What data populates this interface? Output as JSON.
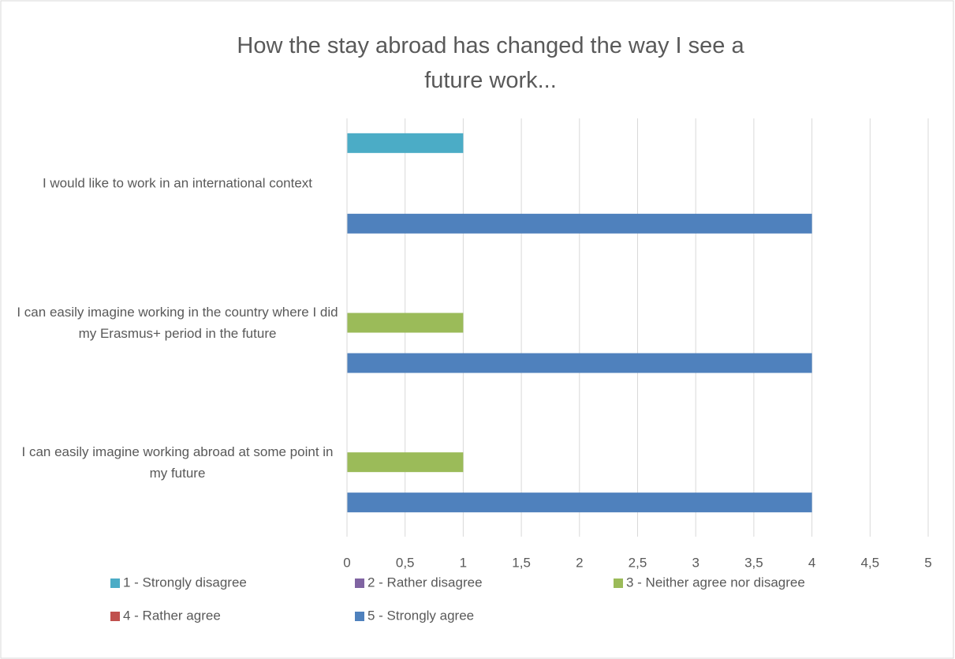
{
  "chart_data": {
    "type": "hbar",
    "title": "How the stay abroad has changed the way I see a future work...",
    "categories": [
      "I would like to work in an international context",
      "I can easily imagine working in the country where I did my Erasmus+ period in the future",
      "I can easily imagine working abroad at some point in my future"
    ],
    "series": [
      {
        "name": "1 - Strongly disagree",
        "color": "#4bacc6",
        "values": [
          1,
          0,
          0
        ]
      },
      {
        "name": "2 - Rather disagree",
        "color": "#8064a2",
        "values": [
          0,
          0,
          0
        ]
      },
      {
        "name": "3 - Neither agree nor disagree",
        "color": "#9bbb59",
        "values": [
          0,
          1,
          1
        ]
      },
      {
        "name": "4 - Rather agree",
        "color": "#c0504d",
        "values": [
          0,
          0,
          0
        ]
      },
      {
        "name": "5 - Strongly agree",
        "color": "#4f81bd",
        "values": [
          4,
          4,
          4
        ]
      }
    ],
    "xlim": [
      0,
      5
    ],
    "xticks": [
      0,
      {
        "value": 0.5,
        "label": "0,5"
      },
      1,
      {
        "value": 1.5,
        "label": "1,5"
      },
      2,
      {
        "value": 2.5,
        "label": "2,5"
      },
      3,
      {
        "value": 3.5,
        "label": "3,5"
      },
      4,
      {
        "value": 4.5,
        "label": "4,5"
      },
      5
    ],
    "grid": true,
    "legend": "bottom"
  }
}
